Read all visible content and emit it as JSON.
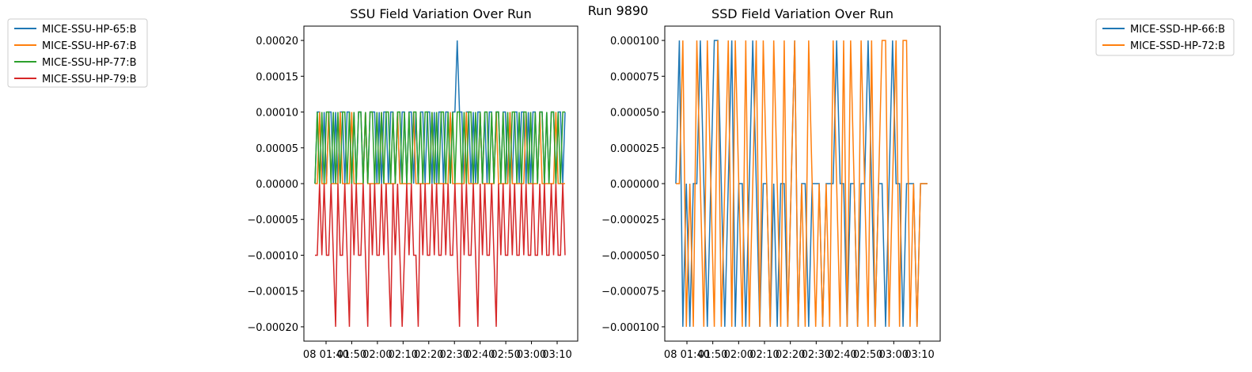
{
  "suptitle": "Run 9890",
  "chart_data": [
    {
      "type": "line",
      "title": "SSU Field Variation Over Run",
      "xlabel": "",
      "ylabel": "",
      "ylim": [
        -0.00022,
        0.00022
      ],
      "yticks": [
        0.0002,
        0.00015,
        0.0001,
        5e-05,
        0.0,
        -5e-05,
        -0.0001,
        -0.00015,
        -0.0002
      ],
      "ytick_labels": [
        "0.00020",
        "0.00015",
        "0.00010",
        "0.00005",
        "0.00000",
        "−0.00005",
        "−0.00010",
        "−0.00015",
        "−0.00020"
      ],
      "xtick_labels": [
        "08 01:40",
        "01:50",
        "02:00",
        "02:10",
        "02:20",
        "02:30",
        "02:40",
        "02:50",
        "03:00",
        "03:10"
      ],
      "legend_position": "outside-left",
      "series": [
        {
          "name": "MICE-SSU-HP-65:B",
          "color": "#1f77b4",
          "values": [
            0,
            0.0001,
            0.0001,
            0,
            0.0001,
            0,
            0.0001,
            0.0001,
            0,
            0.0001,
            0,
            0.0001,
            0.0001,
            0,
            0.0001,
            0.0001,
            0,
            0.0001,
            0,
            0.0001,
            0.0001,
            0,
            0.0001,
            0,
            0.0001,
            0.0001,
            0.0001,
            0,
            0.0001,
            0,
            0.0001,
            0.0001,
            0,
            0.0001,
            0.0001,
            0,
            0.0001,
            0,
            0.0001,
            0.0001,
            0,
            0.0001,
            0.0001,
            0,
            0.0001,
            0,
            0.0001,
            0.0001,
            0,
            0.0001,
            0.0001,
            0,
            0.0001,
            0,
            0.0001,
            0.0001,
            0,
            0.0001,
            0.0001,
            0,
            0.0001,
            0.0001,
            0.0002,
            0.0001,
            0.0001,
            0,
            0.0001,
            0.0001,
            0,
            0.0001,
            0,
            0.0001,
            0.0001,
            0,
            0.0001,
            0,
            0.0001,
            0.0001,
            0,
            0.0001,
            0.0001,
            0,
            0.0001,
            0.0001,
            0,
            0.0001,
            0,
            0.0001,
            0.0001,
            0,
            0.0001,
            0.0001,
            0,
            0.0001,
            0,
            0.0001,
            0.0001,
            0,
            0.0001,
            0.0001,
            0,
            0.0001,
            0,
            0.0001,
            0.0001,
            0,
            0.0001,
            0.0001,
            0,
            0.0001
          ]
        },
        {
          "name": "MICE-SSU-HP-67:B",
          "color": "#ff7f0e",
          "values": [
            0,
            0,
            0.0001,
            0,
            0,
            0,
            0.0001,
            0,
            0,
            0,
            0,
            0.0001,
            0,
            0,
            0,
            0,
            0.0001,
            0,
            0,
            0,
            0,
            0,
            0.0001,
            0,
            0,
            0,
            0,
            0,
            0,
            0.0001,
            0,
            0,
            0,
            0,
            0,
            0,
            0.0001,
            0,
            0,
            0,
            0,
            0,
            0,
            0.0001,
            0,
            0,
            0,
            0,
            0,
            0,
            0,
            0.0001,
            0,
            0,
            0,
            0,
            0,
            0,
            0,
            0.0001,
            0,
            0,
            0,
            0,
            0,
            0,
            0.0001,
            0,
            0,
            0,
            0,
            0,
            0.0001,
            0,
            0,
            0,
            0,
            0,
            0,
            0.0001,
            0,
            0,
            0,
            0,
            0,
            0.0001,
            0,
            0,
            0,
            0,
            0,
            0,
            0.0001,
            0,
            0,
            0,
            0,
            0,
            0.0001,
            0,
            0,
            0,
            0,
            0,
            0,
            0.0001,
            0,
            0,
            0,
            0
          ]
        },
        {
          "name": "MICE-SSU-HP-77:B",
          "color": "#2ca02c",
          "values": [
            0,
            0.0001,
            0,
            0.0001,
            0,
            0.0001,
            0.0001,
            0,
            0.0001,
            0,
            0.0001,
            0,
            0.0001,
            0.0001,
            0,
            0.0001,
            0,
            0.0001,
            0,
            0.0001,
            0.0001,
            0,
            0.0001,
            0,
            0.0001,
            0.0001,
            0,
            0.0001,
            0,
            0.0001,
            0,
            0.0001,
            0.0001,
            0,
            0.0001,
            0,
            0.0001,
            0.0001,
            0,
            0.0001,
            0,
            0.0001,
            0,
            0.0001,
            0.0001,
            0,
            0.0001,
            0,
            0.0001,
            0.0001,
            0,
            0.0001,
            0,
            0.0001,
            0,
            0.0001,
            0.0001,
            0,
            0.0001,
            0,
            0.0001,
            0,
            0.0001,
            0.0001,
            0,
            0.0001,
            0,
            0.0001,
            0.0001,
            0,
            0.0001,
            0,
            0.0001,
            0,
            0.0001,
            0.0001,
            0,
            0.0001,
            0,
            0.0001,
            0.0001,
            0,
            0.0001,
            0,
            0.0001,
            0,
            0.0001,
            0.0001,
            0,
            0.0001,
            0,
            0.0001,
            0.0001,
            0,
            0.0001,
            0,
            0.0001,
            0,
            0.0001,
            0.0001,
            0,
            0.0001,
            0,
            0.0001,
            0.0001,
            0,
            0.0001,
            0,
            0.0001,
            0.0001
          ]
        },
        {
          "name": "MICE-SSU-HP-79:B",
          "color": "#d62728",
          "values": [
            -0.0001,
            -0.0001,
            0,
            -0.0001,
            0,
            -0.0001,
            -0.0001,
            0,
            -0.0001,
            -0.0002,
            0,
            -0.0001,
            -0.0001,
            0,
            -0.0001,
            -0.0002,
            0,
            -0.0001,
            0,
            -0.0001,
            -0.0001,
            0,
            -0.0001,
            -0.0002,
            0,
            -0.0001,
            0,
            -0.0001,
            -0.0001,
            0,
            -0.0001,
            0,
            -0.0001,
            -0.0002,
            0,
            -0.0001,
            0,
            -0.0001,
            -0.0002,
            -0.0001,
            0,
            -0.0001,
            0,
            -0.0001,
            -0.0001,
            -0.0002,
            0,
            -0.0001,
            0,
            -0.0001,
            -0.0001,
            0,
            -0.0001,
            0,
            -0.0001,
            -0.0001,
            0,
            -0.0001,
            0,
            -0.0001,
            -0.0001,
            0,
            -0.0001,
            -0.0002,
            0,
            -0.0001,
            0,
            -0.0001,
            -0.0001,
            0,
            -0.0001,
            -0.0002,
            0,
            -0.0001,
            0,
            -0.0001,
            -0.0001,
            0,
            -0.0001,
            -0.0002,
            0,
            -0.0001,
            0,
            -0.0001,
            -0.0001,
            0,
            -0.0001,
            0,
            -0.0001,
            -0.0001,
            0,
            -0.0001,
            0,
            -0.0001,
            -0.0001,
            0,
            -0.0001,
            -0.0001,
            0,
            -0.0001,
            0,
            -0.0001,
            -0.0001,
            0,
            -0.0001,
            0,
            -0.0001,
            -0.0001,
            0,
            -0.0001
          ]
        }
      ]
    },
    {
      "type": "line",
      "title": "SSD Field Variation Over Run",
      "xlabel": "",
      "ylabel": "",
      "ylim": [
        -0.00011,
        0.00011
      ],
      "yticks": [
        0.0001,
        7.5e-05,
        5e-05,
        2.5e-05,
        0.0,
        -2.5e-05,
        -5e-05,
        -7.5e-05,
        -0.0001
      ],
      "ytick_labels": [
        "0.000100",
        "0.000075",
        "0.000050",
        "0.000025",
        "0.000000",
        "−0.000025",
        "−0.000050",
        "−0.000075",
        "−0.000100"
      ],
      "xtick_labels": [
        "08 01:40",
        "01:50",
        "02:00",
        "02:10",
        "02:20",
        "02:30",
        "02:40",
        "02:50",
        "03:00",
        "03:10"
      ],
      "legend_position": "outside-right",
      "series": [
        {
          "name": "MICE-SSD-HP-66:B",
          "color": "#1f77b4",
          "values": [
            0,
            0.0001,
            -0.0001,
            0,
            -0.0001,
            0,
            0,
            0.0001,
            0,
            -0.0001,
            0,
            0.0001,
            0.0001,
            0,
            -0.0001,
            0,
            0.0001,
            -0.0001,
            0,
            0,
            -0.0001,
            0,
            0.0001,
            0,
            -0.0001,
            0,
            0,
            -0.0001,
            0,
            -0.0001,
            0,
            0,
            -0.0001,
            0,
            0.0001,
            -0.0001,
            0,
            0,
            -0.0001,
            0,
            0,
            0,
            -0.0001,
            0,
            0,
            0,
            0.0001,
            0,
            0,
            -0.0001,
            0,
            0,
            -0.0001,
            0,
            0,
            0.0001,
            0,
            -0.0001,
            0,
            0,
            -0.0001,
            0,
            0.0001,
            0,
            0,
            -0.0001,
            0,
            0,
            0,
            -0.0001,
            0,
            0,
            0
          ]
        },
        {
          "name": "MICE-SSD-HP-72:B",
          "color": "#ff7f0e",
          "values": [
            0,
            0,
            0.0001,
            -0.0001,
            0,
            -0.0001,
            0.0001,
            0,
            -0.0001,
            0.0001,
            0,
            -0.0001,
            0.0001,
            -0.0001,
            0,
            0.0001,
            -0.0001,
            0.0001,
            0,
            -0.0001,
            0.0001,
            -0.0001,
            0,
            0.0001,
            -0.0001,
            0.0001,
            0,
            -0.0001,
            0.0001,
            0,
            -0.0001,
            0.0001,
            -0.0001,
            0,
            0.0001,
            -0.0001,
            0,
            -0.0001,
            0.0001,
            0,
            -0.0001,
            0,
            -0.0001,
            0,
            -0.0001,
            0.0001,
            0,
            -0.0001,
            0.0001,
            -0.0001,
            0.0001,
            0,
            -0.0001,
            0.0001,
            0,
            -0.0001,
            0.0001,
            -0.0001,
            0,
            0.0001,
            0.0001,
            -0.0001,
            0,
            0.0001,
            -0.0001,
            0.0001,
            0.0001,
            -0.0001,
            0,
            -0.0001,
            0,
            0,
            0
          ]
        }
      ]
    }
  ]
}
